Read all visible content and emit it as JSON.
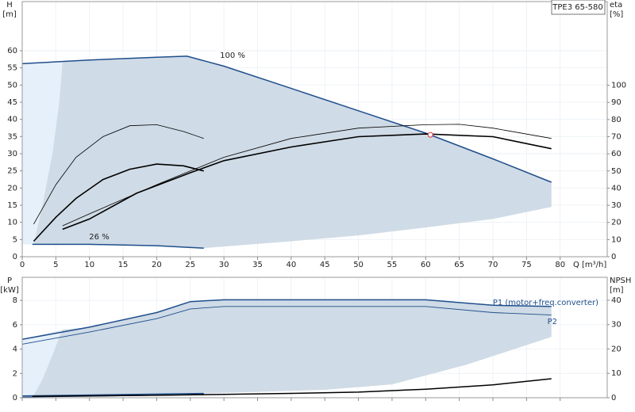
{
  "chart_data": [
    {
      "type": "line",
      "title": "TPE3 65-580",
      "ylabel": "H",
      "yunit": "[m]",
      "y2label": "eta",
      "y2unit": "[%]",
      "xlabel": "Q",
      "xunit": "[m³/h]",
      "xlim": [
        0,
        87
      ],
      "ylim": [
        0,
        74.3
      ],
      "y2lim": [
        0,
        148.8
      ],
      "xticks": [
        0,
        5,
        10,
        15,
        20,
        25,
        30,
        35,
        40,
        45,
        50,
        55,
        60,
        65,
        70,
        75,
        80
      ],
      "yticks": [
        0,
        5,
        10,
        15,
        20,
        25,
        30,
        35,
        40,
        45,
        50,
        55,
        60
      ],
      "y2ticks": [
        0,
        10,
        20,
        30,
        40,
        50,
        60,
        70,
        80,
        90,
        100
      ],
      "grid": true,
      "annotations": [
        "100 %",
        "26 %"
      ],
      "series": [
        {
          "color": "#1f4e8c",
          "width": 1.5,
          "x": [
            0,
            10,
            20,
            24.5,
            30,
            40,
            50,
            60,
            70,
            78.7
          ],
          "values": [
            56.2,
            57.3,
            58.1,
            58.4,
            55.5,
            49,
            42.5,
            36,
            28.5,
            21.7
          ]
        },
        {
          "color": "#1f4e8c",
          "width": 1.5,
          "x": [
            1.5,
            10,
            20,
            27
          ],
          "values": [
            3.6,
            3.6,
            3.2,
            2.5
          ]
        },
        {
          "color": "#000000",
          "width": 0.8,
          "axis": "y2",
          "x": [
            6,
            10,
            20,
            30,
            40,
            50,
            60,
            65,
            70,
            78.7
          ],
          "values": [
            18,
            25,
            42,
            58,
            69,
            75,
            77,
            77.2,
            75,
            69
          ]
        },
        {
          "color": "#000000",
          "width": 0.8,
          "axis": "y2",
          "x": [
            1.7,
            5,
            8,
            12,
            16,
            20,
            24,
            27
          ],
          "values": [
            19,
            42,
            58,
            70,
            76.4,
            77,
            73,
            69
          ]
        },
        {
          "color": "#000000",
          "width": 1.6,
          "axis": "y2",
          "x": [
            6,
            10,
            17,
            25,
            30,
            40,
            50,
            60,
            70,
            78.7
          ],
          "values": [
            16,
            22,
            37,
            49,
            56,
            64,
            70,
            71.6,
            70,
            63
          ]
        },
        {
          "color": "#000000",
          "width": 1.6,
          "axis": "y2",
          "x": [
            1.7,
            5,
            8,
            12,
            16,
            20,
            24,
            27
          ],
          "values": [
            9,
            23,
            34,
            45,
            51,
            54,
            53,
            50
          ]
        }
      ],
      "region": {
        "color": "#cfdbe6",
        "light_color": "#e6f0fa",
        "left_x": [
          1.7,
          3,
          4.5,
          5.5,
          6
        ],
        "left_values": [
          3.6,
          15,
          30,
          45,
          57
        ],
        "lower_x": [
          27,
          40,
          50,
          60,
          70,
          78.7
        ],
        "lower_values": [
          2.5,
          4.5,
          6.2,
          8.5,
          11,
          14.5
        ]
      },
      "duty_point": {
        "x": 60.7,
        "y": 35.5,
        "color": "#e03030"
      }
    },
    {
      "type": "line",
      "ylabel": "P",
      "yunit": "[kW]",
      "y2label": "NPSH",
      "y2unit": "[m]",
      "xlim": [
        0,
        87
      ],
      "ylim": [
        0,
        9.9
      ],
      "y2lim": [
        0,
        49.4
      ],
      "xticks": [
        0,
        5,
        10,
        15,
        20,
        25,
        30,
        35,
        40,
        45,
        50,
        55,
        60,
        65,
        70,
        75,
        80
      ],
      "yticks": [
        0,
        2,
        4,
        6,
        8
      ],
      "y2ticks": [
        0,
        10,
        20,
        30,
        40
      ],
      "grid": true,
      "series": [
        {
          "name": "P1 (motor+freq.converter)",
          "color": "#1f4e8c",
          "width": 1.5,
          "x": [
            0,
            10,
            20,
            25,
            30,
            40,
            50,
            60,
            70,
            78.7
          ],
          "values": [
            4.8,
            5.8,
            7,
            7.9,
            8.05,
            8.05,
            8.05,
            8.05,
            7.6,
            7.5
          ]
        },
        {
          "name": "P2",
          "color": "#1f4e8c",
          "width": 0.9,
          "x": [
            0,
            10,
            20,
            25,
            30,
            60,
            70,
            78.7
          ],
          "values": [
            4.4,
            5.4,
            6.5,
            7.3,
            7.5,
            7.5,
            7.0,
            6.8
          ]
        },
        {
          "color": "#1f4e8c",
          "width": 1.5,
          "x": [
            0,
            27
          ],
          "values": [
            0.15,
            0.35
          ]
        },
        {
          "color": "#1f4e8c",
          "width": 0.9,
          "x": [
            0,
            27
          ],
          "values": [
            0.05,
            0.25
          ]
        },
        {
          "color": "#000000",
          "width": 1.5,
          "axis": "y2",
          "x": [
            1.5,
            20,
            30,
            40,
            50,
            60,
            70,
            78.7
          ],
          "values": [
            0.6,
            1,
            1.4,
            1.8,
            2.3,
            3.5,
            5.3,
            7.8
          ]
        }
      ],
      "region": {
        "color": "#cfdbe6",
        "light_color": "#e6f0fa",
        "left_x": [
          1.7,
          3,
          4.5,
          5.5,
          6
        ],
        "left_values": [
          0.2,
          1.5,
          3.5,
          5,
          5.6
        ],
        "lower_x": [
          27,
          45,
          55,
          66,
          78.7
        ],
        "lower_values": [
          0.35,
          0.65,
          1.1,
          2.7,
          5.0
        ]
      }
    }
  ]
}
